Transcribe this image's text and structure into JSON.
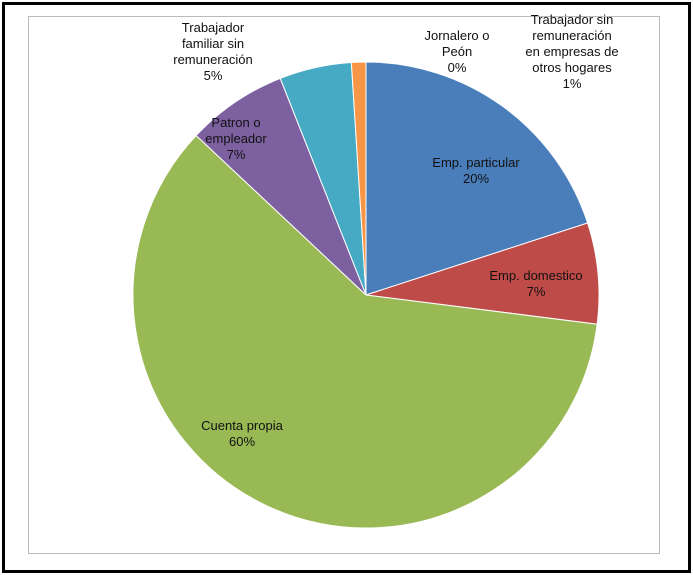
{
  "chart_data": {
    "type": "pie",
    "title": "",
    "slices": [
      {
        "name": "Emp. particular",
        "value": 20,
        "pct_label": "20%",
        "label_lines": [
          "Emp. particular"
        ],
        "color": "#4a7ebb"
      },
      {
        "name": "Emp. domestico",
        "value": 7,
        "pct_label": "7%",
        "label_lines": [
          "Emp. domestico"
        ],
        "color": "#be4b48"
      },
      {
        "name": "Cuenta propia",
        "value": 60,
        "pct_label": "60%",
        "label_lines": [
          "Cuenta propia"
        ],
        "color": "#98b954"
      },
      {
        "name": "Patron o empleador",
        "value": 7,
        "pct_label": "7%",
        "label_lines": [
          "Patron o",
          "empleador"
        ],
        "color": "#7d60a0"
      },
      {
        "name": "Trabajador familiar sin remuneración",
        "value": 5,
        "pct_label": "5%",
        "label_lines": [
          "Trabajador",
          "familiar sin",
          "remuneración"
        ],
        "color": "#46aac5"
      },
      {
        "name": "Trabajador sin remuneración en empresas de otros hogares",
        "value": 1,
        "pct_label": "1%",
        "label_lines": [
          "Trabajador sin",
          "remuneración",
          "en empresas de",
          "otros hogares"
        ],
        "color": "#f79646"
      },
      {
        "name": "Jornalero o Peón",
        "value": 0,
        "pct_label": "0%",
        "label_lines": [
          "Jornalero o",
          "Peón"
        ],
        "color": "#2c4d75"
      }
    ],
    "legend": "none",
    "colors": {
      "slice_border": "#ffffff",
      "frame": "#000000",
      "plot_border": "#b9b9b9"
    }
  }
}
